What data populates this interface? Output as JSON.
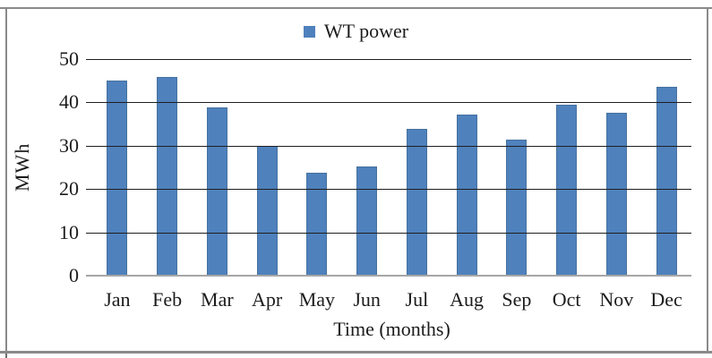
{
  "chart_data": {
    "type": "bar",
    "title": "",
    "categories": [
      "Jan",
      "Feb",
      "Mar",
      "Apr",
      "May",
      "Jun",
      "Jul",
      "Aug",
      "Sep",
      "Oct",
      "Nov",
      "Dec"
    ],
    "series": [
      {
        "name": "WT power",
        "values": [
          45.0,
          45.9,
          38.9,
          30.0,
          23.8,
          25.2,
          33.8,
          37.1,
          31.4,
          39.5,
          37.7,
          43.5
        ]
      }
    ],
    "xlabel": "Time (months)",
    "ylabel": "MWh",
    "ylim": [
      0,
      50
    ],
    "yticks": [
      0,
      10,
      20,
      30,
      40,
      50
    ],
    "grid": true,
    "legend_position": "top-center",
    "legend_label": "WT power",
    "bar_color": "#4f81bd",
    "gridline_color": "#1f1f1f",
    "baseline_color": "#a6a6a6",
    "frame_color": "#8a8a8a"
  }
}
